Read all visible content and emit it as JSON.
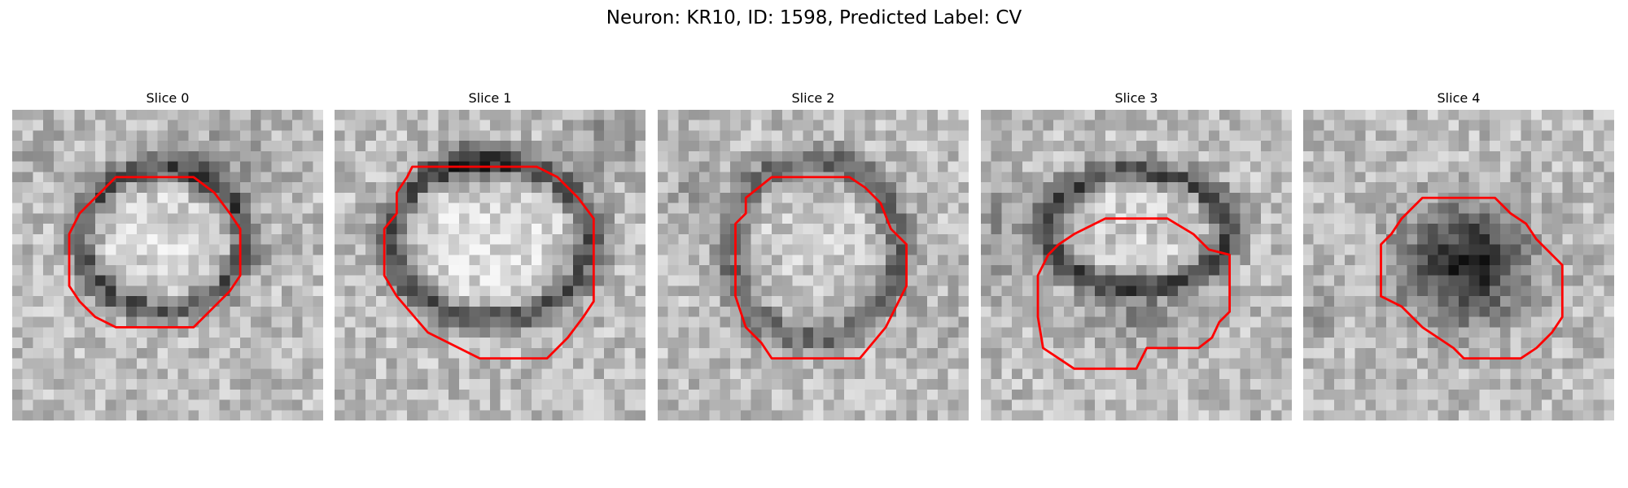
{
  "figure": {
    "title": "Neuron: KR10, ID: 1598, Predicted Label: CV"
  },
  "panels": [
    {
      "title": "Slice 0"
    },
    {
      "title": "Slice 1"
    },
    {
      "title": "Slice 2"
    },
    {
      "title": "Slice 3"
    },
    {
      "title": "Slice 4"
    }
  ],
  "colors": {
    "contour": "#ff0000",
    "background": "#ffffff"
  }
}
